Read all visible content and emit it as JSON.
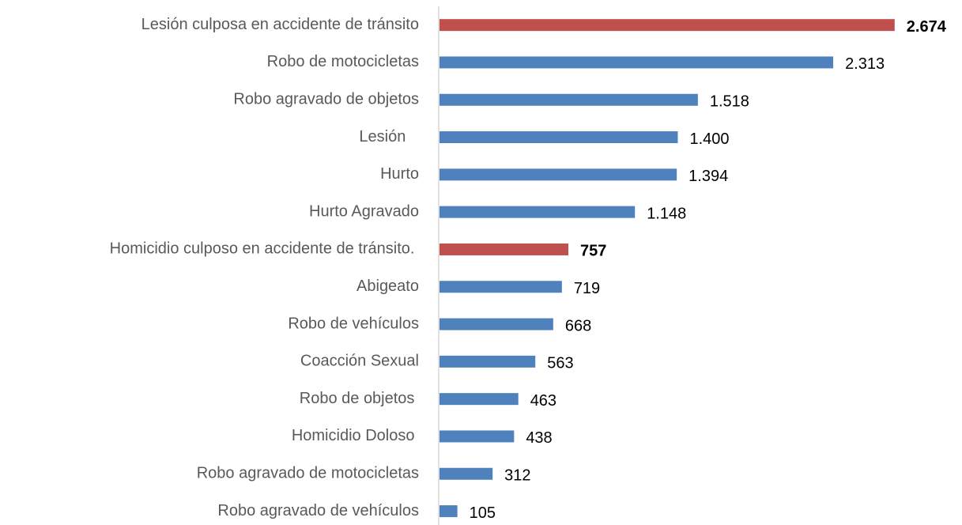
{
  "chart_data": {
    "type": "bar",
    "orientation": "horizontal",
    "categories": [
      "Lesión culposa en accidente de tránsito",
      "Robo de motocicletas",
      "Robo agravado de objetos",
      "Lesión   ",
      "Hurto",
      "Hurto Agravado",
      "Homicidio culposo en accidente de tránsito. ",
      "Abigeato",
      "Robo de vehículos",
      "Coacción Sexual",
      "Robo de objetos ",
      "Homicidio Doloso ",
      "Robo agravado de motocicletas",
      "Robo agravado de vehículos"
    ],
    "values": [
      2674,
      2313,
      1518,
      1400,
      1394,
      1148,
      757,
      719,
      668,
      563,
      463,
      438,
      312,
      105
    ],
    "value_labels": [
      "2.674",
      "2.313",
      "1.518",
      "1.400",
      "1.394",
      "1.148",
      "757",
      "719",
      "668",
      "563",
      "463",
      "438",
      "312",
      "105"
    ],
    "colors": [
      "#c0504d",
      "#4f81bd",
      "#4f81bd",
      "#4f81bd",
      "#4f81bd",
      "#4f81bd",
      "#c0504d",
      "#4f81bd",
      "#4f81bd",
      "#4f81bd",
      "#4f81bd",
      "#4f81bd",
      "#4f81bd",
      "#4f81bd"
    ],
    "label_bold": [
      true,
      false,
      false,
      false,
      false,
      false,
      true,
      false,
      false,
      false,
      false,
      false,
      false,
      false
    ],
    "xlim": [
      0,
      3000
    ]
  }
}
